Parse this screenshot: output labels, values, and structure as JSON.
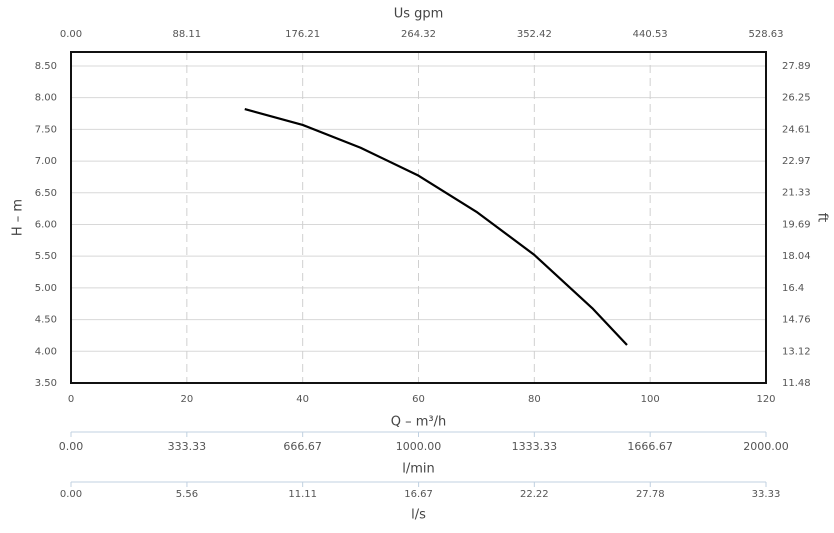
{
  "chart_data": {
    "type": "line",
    "x_label": "Q – m³/h",
    "y_label": "H – m",
    "x2_label": "Us gpm",
    "y2_label": "ft",
    "x3_label": "l/min",
    "x4_label": "l/s",
    "xlim": [
      0,
      120
    ],
    "xticks": [
      0,
      20,
      40,
      60,
      80,
      100,
      120
    ],
    "ylim": [
      3.5,
      8.72
    ],
    "yticks": [
      {
        "value": 3.5,
        "label": "3.50"
      },
      {
        "value": 4,
        "label": "4.00"
      },
      {
        "value": 4.5,
        "label": "4.50"
      },
      {
        "value": 5,
        "label": "5.00"
      },
      {
        "value": 5.5,
        "label": "5.50"
      },
      {
        "value": 6,
        "label": "6.00"
      },
      {
        "value": 6.5,
        "label": "6.50"
      },
      {
        "value": 7,
        "label": "7.00"
      },
      {
        "value": 7.5,
        "label": "7.50"
      },
      {
        "value": 8,
        "label": "8.00"
      },
      {
        "value": 8.5,
        "label": "8.50"
      }
    ],
    "x2lim": [
      0,
      528.63
    ],
    "x2ticks": [
      {
        "value": 0,
        "label": "0.00"
      },
      88.11,
      176.21,
      264.32,
      352.42,
      440.53,
      528.63
    ],
    "y2lim": [
      11.48,
      28.61
    ],
    "y2ticks": [
      11.48,
      13.12,
      14.76,
      16.4,
      18.04,
      19.69,
      21.33,
      22.97,
      24.61,
      26.25,
      27.89
    ],
    "x3lim": [
      0,
      2000
    ],
    "x3ticks": [
      {
        "value": 0,
        "label": "0.00"
      },
      333.33,
      666.67,
      {
        "value": 1000,
        "label": "1000.00"
      },
      1333.33,
      1666.67,
      {
        "value": 2000,
        "label": "2000.00"
      }
    ],
    "x4lim": [
      0,
      33.33
    ],
    "x4ticks": [
      {
        "value": 0,
        "label": "0.00"
      },
      5.56,
      11.11,
      16.67,
      22.22,
      27.78,
      33.33
    ],
    "grid": true,
    "x": [
      30,
      40,
      50,
      60,
      70,
      80,
      90,
      96
    ],
    "series": [
      {
        "color": "#000000",
        "values": [
          7.82,
          7.57,
          7.21,
          6.77,
          6.2,
          5.52,
          4.68,
          4.1
        ]
      }
    ]
  }
}
